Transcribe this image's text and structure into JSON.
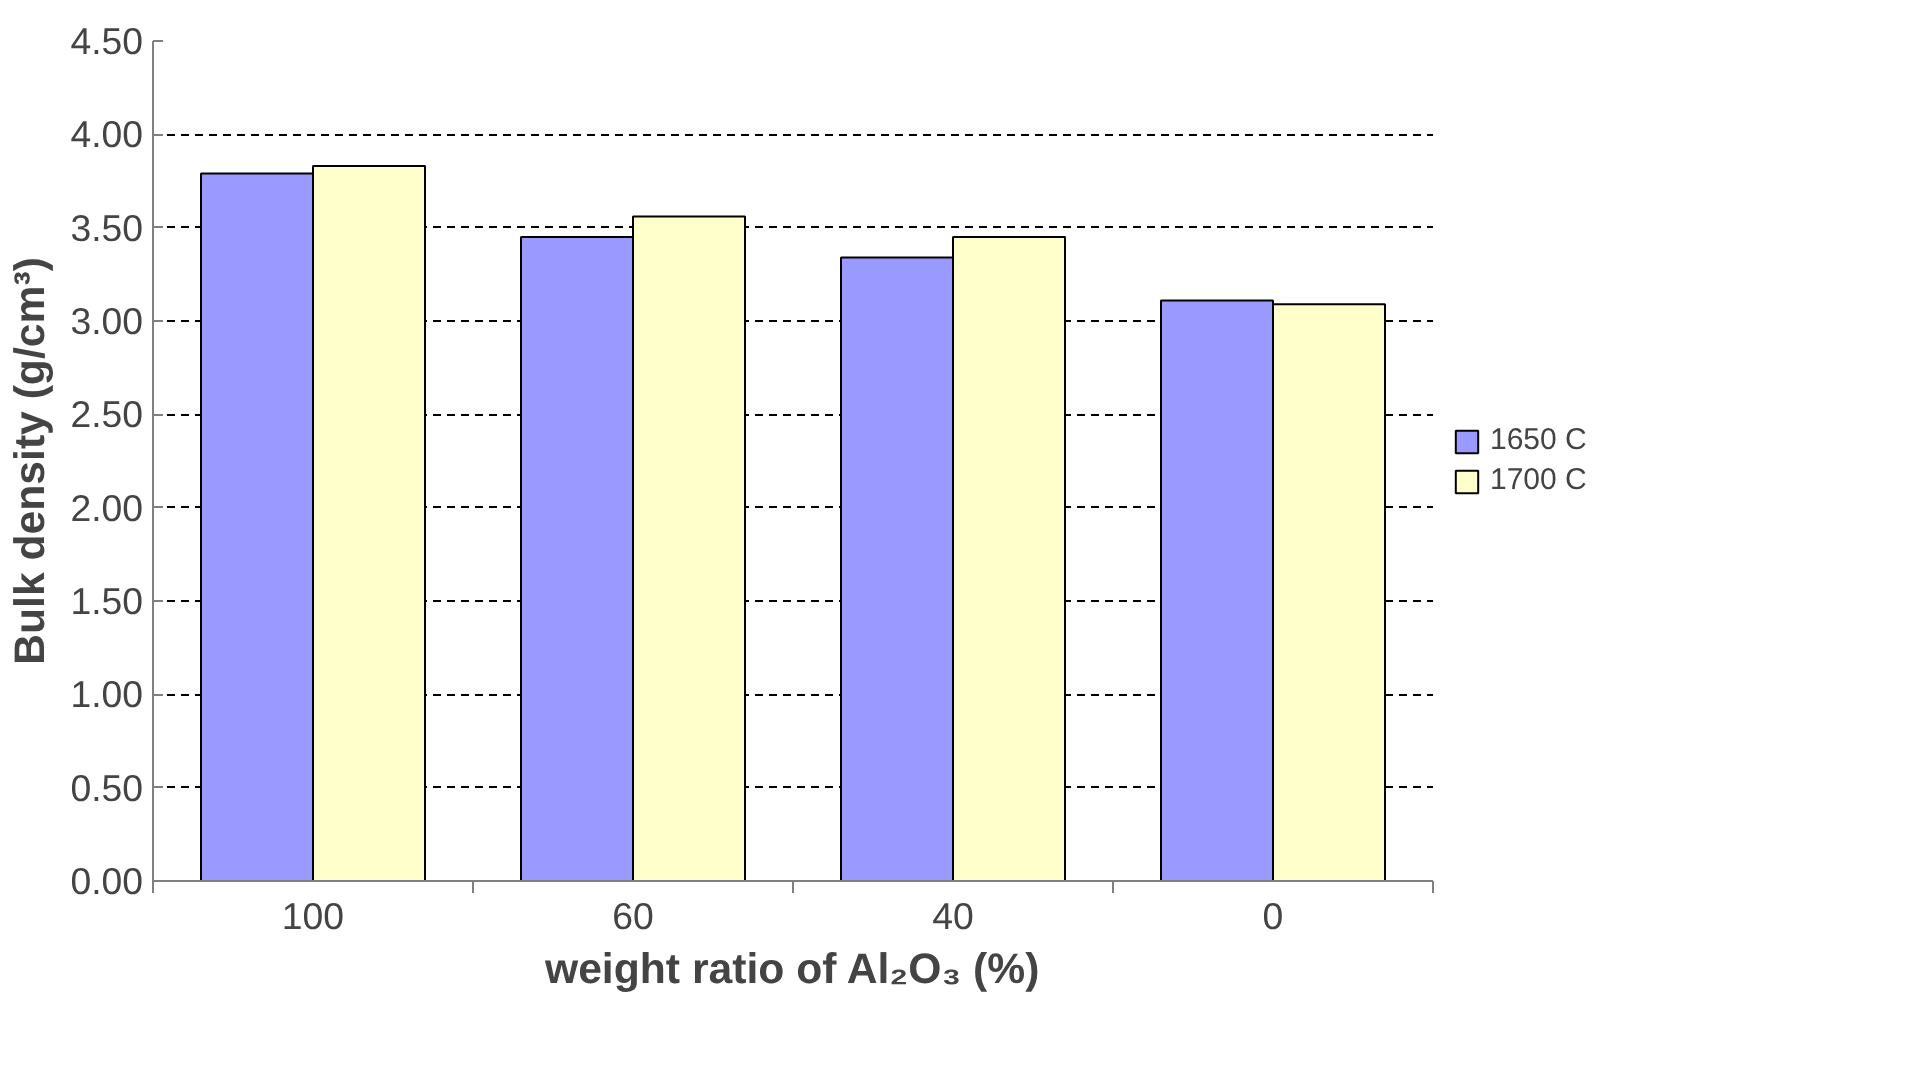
{
  "chart_data": {
    "type": "bar",
    "xlabel": "weight ratio of Al₂O₃ (%)",
    "ylabel": "Bulk density (g/cm³)",
    "categories": [
      "100",
      "60",
      "40",
      "0"
    ],
    "series": [
      {
        "name": "1650 C",
        "color": "#9999ff",
        "values": [
          3.79,
          3.45,
          3.34,
          3.11
        ]
      },
      {
        "name": "1700 C",
        "color": "#ffffcc",
        "values": [
          3.83,
          3.56,
          3.45,
          3.09
        ]
      }
    ],
    "ylim": [
      0,
      4.5
    ],
    "yticks": [
      {
        "value": 0,
        "label": "0.00"
      },
      {
        "value": 0.5,
        "label": "0.50"
      },
      {
        "value": 1,
        "label": "1.00"
      },
      {
        "value": 1.5,
        "label": "1.50"
      },
      {
        "value": 2,
        "label": "2.00"
      },
      {
        "value": 2.5,
        "label": "2.50"
      },
      {
        "value": 3,
        "label": "3.00"
      },
      {
        "value": 3.5,
        "label": "3.50"
      },
      {
        "value": 4,
        "label": "4.00"
      },
      {
        "value": 4.5,
        "label": "4.50"
      }
    ],
    "grid": "y",
    "legend": "right"
  }
}
